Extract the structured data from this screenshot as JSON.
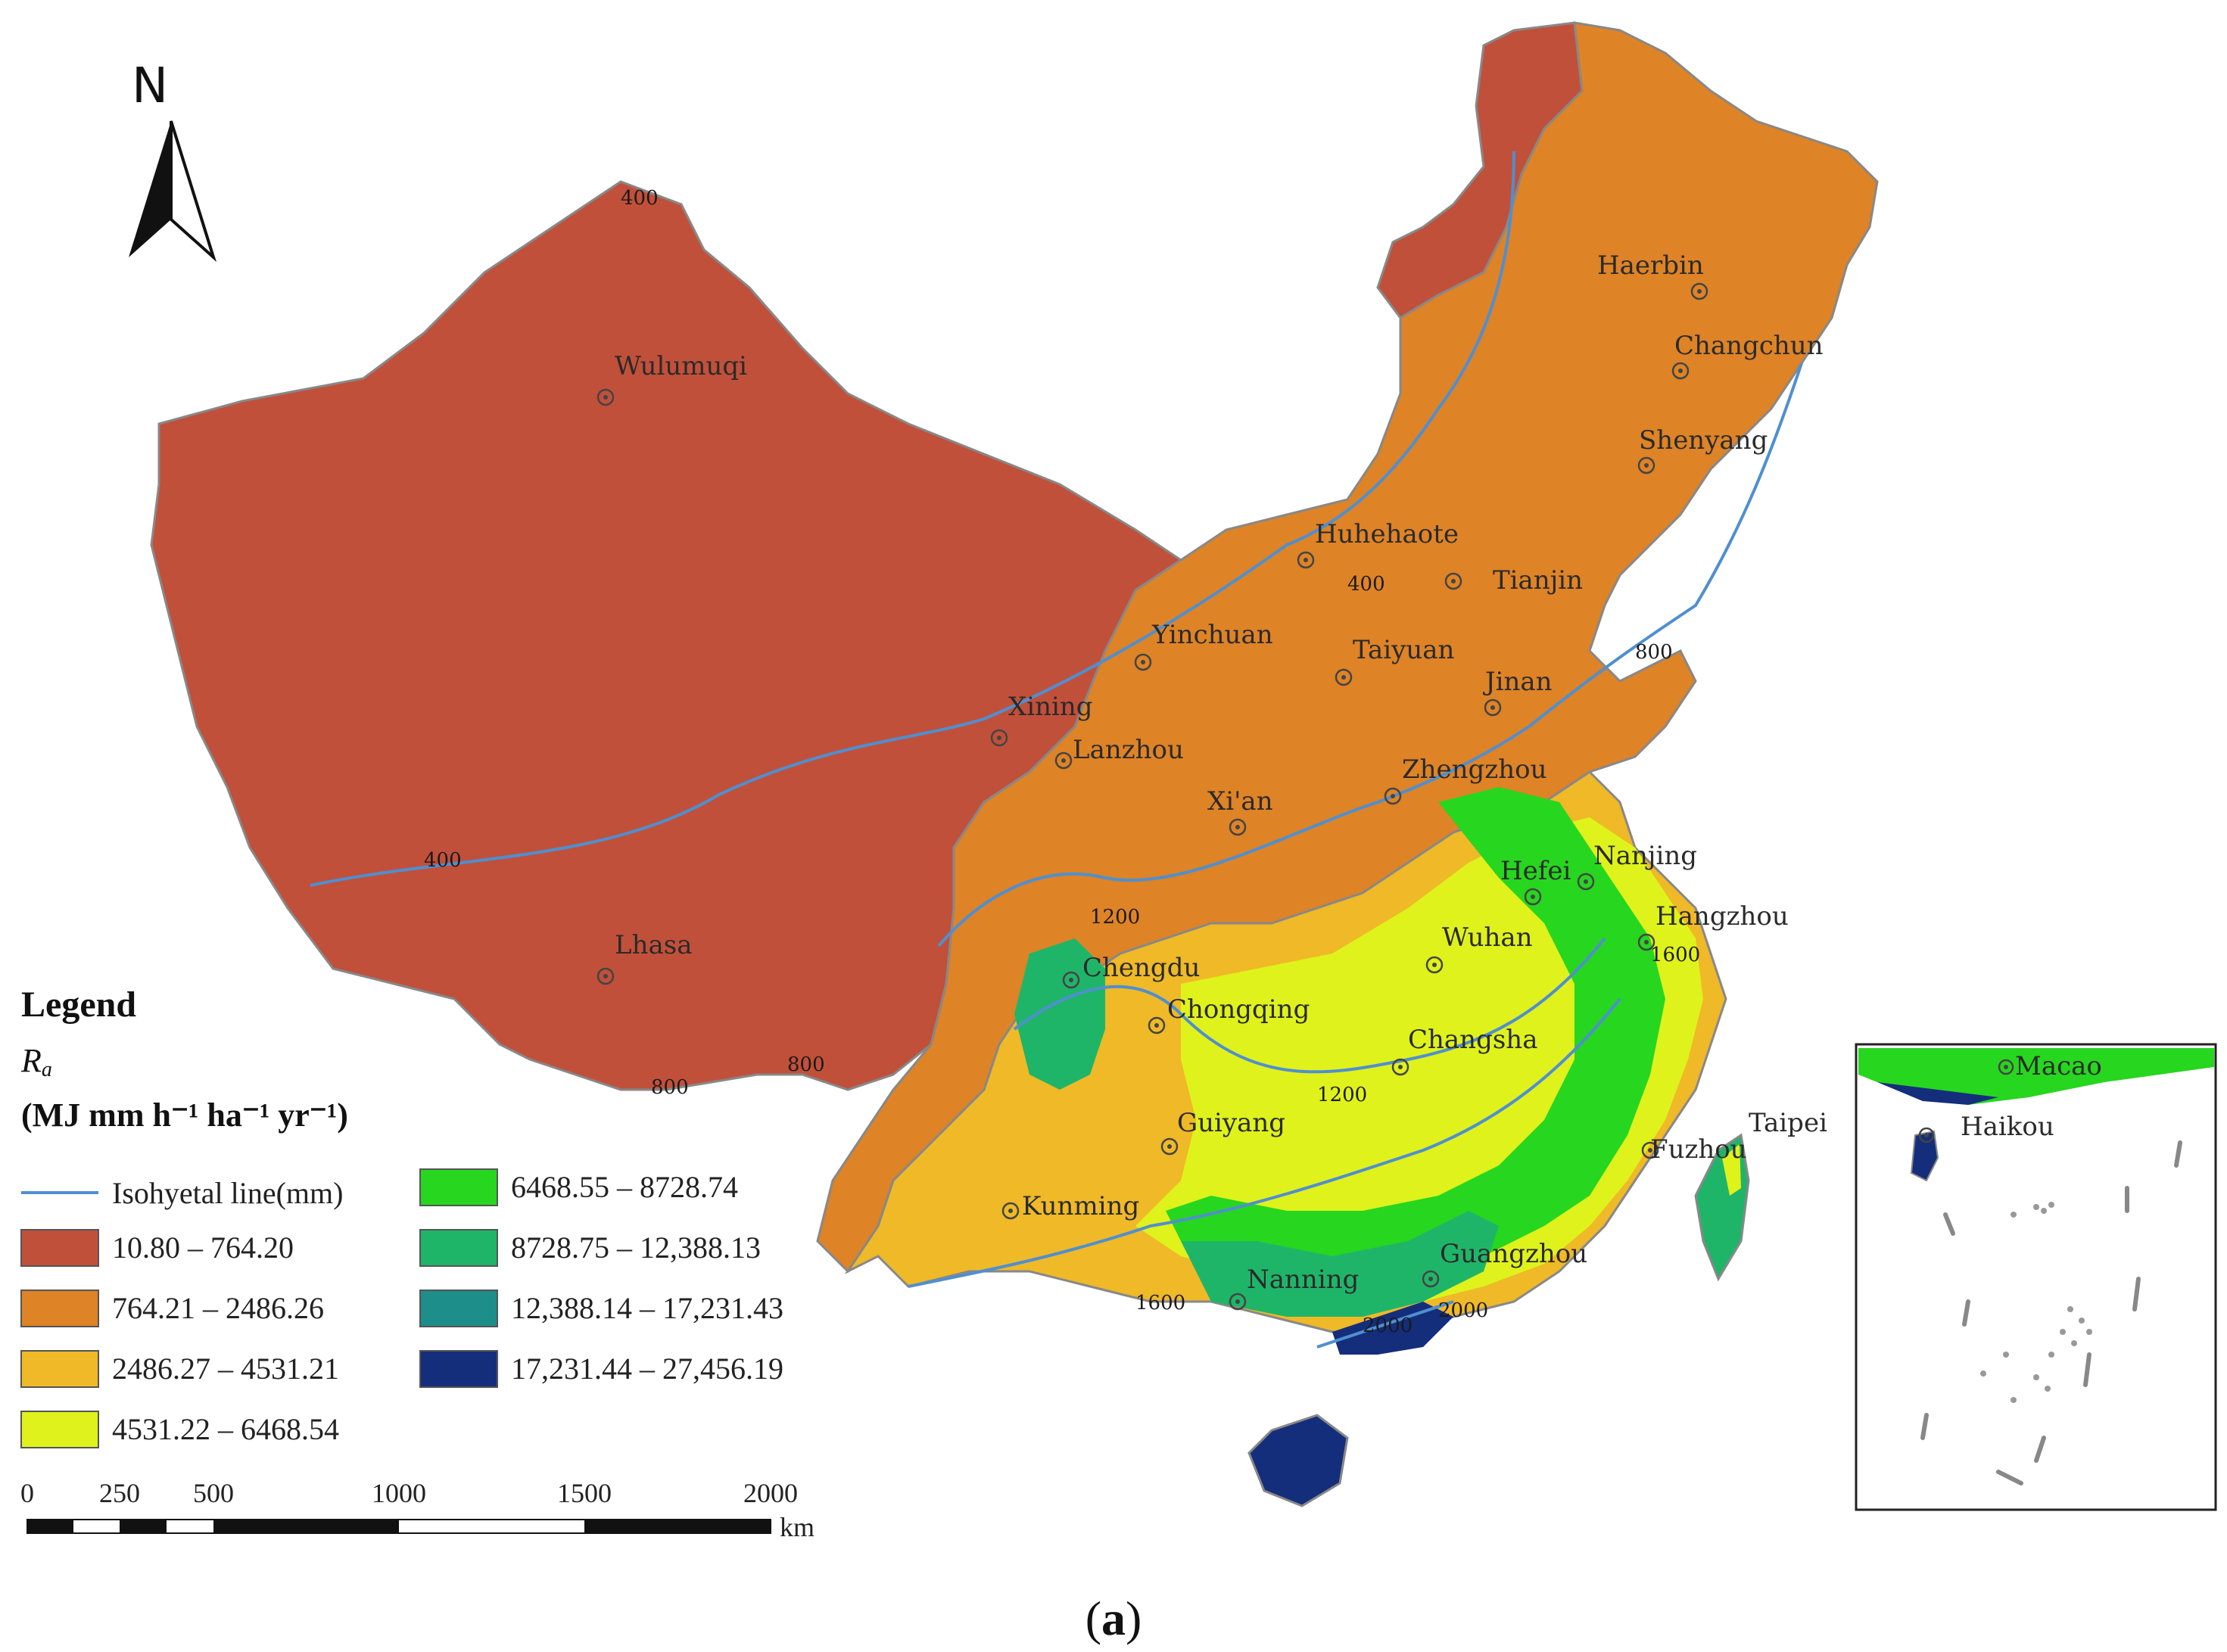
{
  "map": {
    "north_label": "N",
    "legend": {
      "title": "Legend",
      "variable": "Ra",
      "variable_base": "R",
      "variable_sub": "a",
      "units": "(MJ mm h⁻¹ ha⁻¹ yr⁻¹)",
      "isohyet_label": "Isohyetal line(mm)",
      "classes": [
        {
          "range": "10.80 – 764.20",
          "color": "#c1503a"
        },
        {
          "range": "764.21 – 2486.26",
          "color": "#de8326"
        },
        {
          "range": "2486.27 – 4531.21",
          "color": "#efb927"
        },
        {
          "range": "4531.22 – 6468.54",
          "color": "#dff21c"
        },
        {
          "range": "6468.55 – 8728.74",
          "color": "#27d61f"
        },
        {
          "range": "8728.75 – 12,388.13",
          "color": "#1fb569"
        },
        {
          "range": "12,388.14 – 17,231.43",
          "color": "#1d8e8a"
        },
        {
          "range": "17,231.44 – 27,456.19",
          "color": "#142e7c"
        }
      ],
      "isohyet_color": "#4f8fd0"
    },
    "scale_bar": {
      "ticks": [
        "0",
        "250",
        "500",
        "1000",
        "1500",
        "2000"
      ],
      "unit": "km"
    },
    "cities": [
      "Wulumuqi",
      "Lhasa",
      "Xining",
      "Lanzhou",
      "Yinchuan",
      "Huhehaote",
      "Taiyuan",
      "Xi'an",
      "Zhengzhou",
      "Jinan",
      "Tianjin",
      "Haerbin",
      "Changchun",
      "Shenyang",
      "Chengdu",
      "Chongqing",
      "Guiyang",
      "Kunming",
      "Nanning",
      "Guangzhou",
      "Changsha",
      "Wuhan",
      "Hefei",
      "Nanjing",
      "Hangzhou",
      "Fuzhou",
      "Taipei",
      "Macao",
      "Haikou"
    ],
    "isohyet_values": [
      "400",
      "800",
      "1200",
      "1600",
      "2000"
    ],
    "caption": "(a)",
    "caption_letter": "a"
  }
}
